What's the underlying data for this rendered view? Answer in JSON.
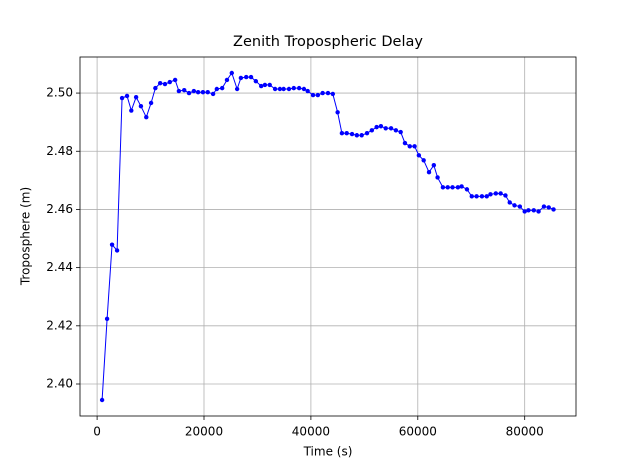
{
  "chart_data": {
    "type": "line",
    "title": "Zenith Tropospheric Delay",
    "xlabel": "Time (s)",
    "ylabel": "Troposphere (m)",
    "x": [
      935,
      1870,
      2800,
      3740,
      4670,
      5600,
      6400,
      7300,
      8200,
      9200,
      10100,
      10900,
      11800,
      12700,
      13600,
      14600,
      15300,
      16300,
      17200,
      18100,
      18900,
      19800,
      20700,
      21700,
      22400,
      23400,
      24300,
      25200,
      26200,
      26900,
      27900,
      28800,
      29700,
      30700,
      31400,
      32300,
      33300,
      34200,
      34900,
      35900,
      36800,
      37800,
      38700,
      39400,
      40400,
      41300,
      42200,
      43200,
      44100,
      45000,
      45800,
      46700,
      47700,
      48600,
      49500,
      50500,
      51400,
      52300,
      53100,
      54000,
      55000,
      55900,
      56800,
      57600,
      58500,
      59400,
      60200,
      61100,
      62100,
      63000,
      63700,
      64700,
      65600,
      66500,
      67500,
      68200,
      69200,
      70100,
      71000,
      72000,
      72900,
      73600,
      74600,
      75500,
      76400,
      77200,
      78100,
      79100,
      80000,
      80700,
      81700,
      82600,
      83600,
      84500,
      85400
    ],
    "values": [
      2.3945,
      2.4224,
      2.4479,
      2.4459,
      2.4983,
      2.499,
      2.494,
      2.4986,
      2.4955,
      2.4917,
      2.4966,
      2.5017,
      2.5034,
      2.5031,
      2.5038,
      2.5045,
      2.5007,
      2.501,
      2.5,
      2.5007,
      2.5003,
      2.5003,
      2.5003,
      2.4997,
      2.5014,
      2.5017,
      2.5045,
      2.5069,
      2.5014,
      2.5052,
      2.5055,
      2.5055,
      2.5041,
      2.5024,
      2.5028,
      2.5028,
      2.5014,
      2.5014,
      2.5014,
      2.5014,
      2.5017,
      2.5017,
      2.5014,
      2.5007,
      2.4993,
      2.4993,
      2.5,
      2.5,
      2.4997,
      2.4934,
      2.4862,
      2.4862,
      2.4859,
      2.4855,
      2.4855,
      2.4862,
      2.4872,
      2.4883,
      2.4886,
      2.4879,
      2.4879,
      2.4872,
      2.4866,
      2.4828,
      2.4817,
      2.4817,
      2.4786,
      2.4769,
      2.4728,
      2.4752,
      2.471,
      2.4676,
      2.4676,
      2.4676,
      2.4676,
      2.4679,
      2.4669,
      2.4645,
      2.4645,
      2.4645,
      2.4645,
      2.4652,
      2.4655,
      2.4655,
      2.4648,
      2.4624,
      2.4614,
      2.461,
      2.4593,
      2.4597,
      2.4597,
      2.4593,
      2.461,
      2.4607,
      2.46
    ],
    "color": "#0000ff",
    "xlim": [
      -3200,
      89600
    ],
    "ylim": [
      2.389,
      2.5124
    ],
    "xticks": [
      0,
      20000,
      40000,
      60000,
      80000
    ],
    "yticks": [
      {
        "value": 2.4,
        "label": "2.40"
      },
      {
        "value": 2.42,
        "label": "2.42"
      },
      {
        "value": 2.44,
        "label": "2.44"
      },
      {
        "value": 2.46,
        "label": "2.46"
      },
      {
        "value": 2.48,
        "label": "2.48"
      },
      {
        "value": 2.5,
        "label": "2.50"
      }
    ],
    "grid": true
  }
}
